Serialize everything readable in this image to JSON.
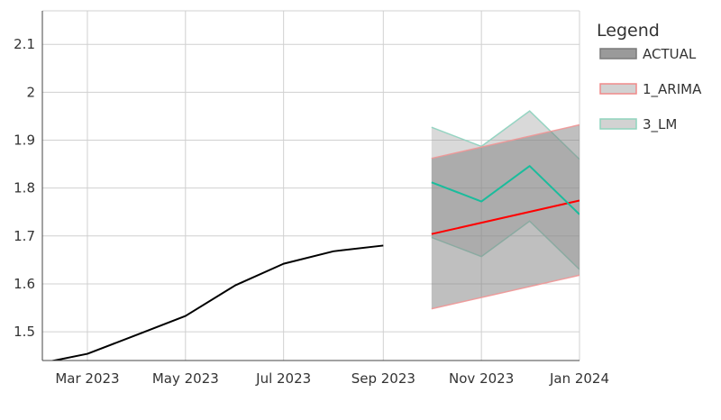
{
  "chart_data": {
    "type": "line",
    "title": "",
    "xlabel": "",
    "ylabel": "",
    "xlim": [
      "2023-02-01",
      "2024-01-01"
    ],
    "ylim": [
      1.44,
      2.17
    ],
    "x_ticks": [
      {
        "date": "2023-03-01",
        "label": "Mar 2023"
      },
      {
        "date": "2023-05-01",
        "label": "May 2023"
      },
      {
        "date": "2023-07-01",
        "label": "Jul 2023"
      },
      {
        "date": "2023-09-01",
        "label": "Sep 2023"
      },
      {
        "date": "2023-11-01",
        "label": "Nov 2023"
      },
      {
        "date": "2024-01-01",
        "label": "Jan 2024"
      }
    ],
    "y_ticks": [
      {
        "value": 1.5,
        "label": "1.5"
      },
      {
        "value": 1.6,
        "label": "1.6"
      },
      {
        "value": 1.7,
        "label": "1.7"
      },
      {
        "value": 1.8,
        "label": "1.8"
      },
      {
        "value": 1.9,
        "label": "1.9"
      },
      {
        "value": 2.0,
        "label": "2"
      },
      {
        "value": 2.1,
        "label": "2.1"
      }
    ],
    "grid": true,
    "legend": {
      "title": "Legend",
      "position": "right",
      "entries": [
        "ACTUAL",
        "1_ARIMA",
        "3_LM"
      ]
    },
    "series": [
      {
        "name": "ACTUAL",
        "color": "#000000",
        "x": [
          "2023-02-01",
          "2023-03-01",
          "2023-04-01",
          "2023-05-01",
          "2023-06-01",
          "2023-07-01",
          "2023-08-01",
          "2023-09-01"
        ],
        "y": [
          1.435,
          1.454,
          1.494,
          1.533,
          1.597,
          1.642,
          1.668,
          1.68
        ]
      },
      {
        "name": "1_ARIMA",
        "color": "#ff0000",
        "band_fill": "rgba(128,128,128,0.5)",
        "band_edge": "rgba(240,150,150,0.9)",
        "x": [
          "2023-10-01",
          "2024-01-01"
        ],
        "y": [
          1.704,
          1.774
        ],
        "lower": [
          1.548,
          1.618
        ],
        "upper": [
          1.862,
          1.932
        ]
      },
      {
        "name": "3_LM",
        "color": "#1abc9c",
        "band_fill": "rgba(160,160,160,0.4)",
        "band_edge": "rgba(140,210,190,0.9)",
        "x": [
          "2023-10-01",
          "2023-11-01",
          "2023-12-01",
          "2024-01-01"
        ],
        "y": [
          1.812,
          1.772,
          1.846,
          1.745
        ],
        "lower": [
          1.697,
          1.657,
          1.731,
          1.63
        ],
        "upper": [
          1.927,
          1.887,
          1.961,
          1.86
        ]
      }
    ]
  }
}
